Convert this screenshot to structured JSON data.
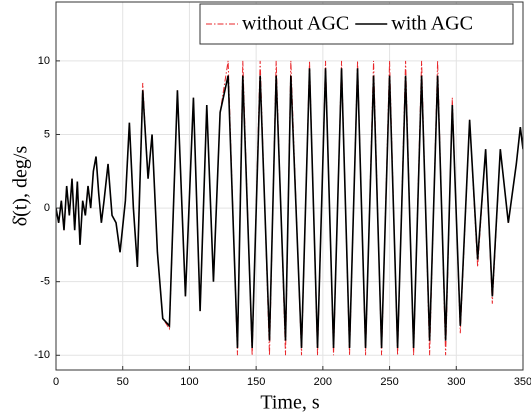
{
  "chart_data": {
    "type": "line",
    "xlabel": "Time, s",
    "ylabel": "δ̇(t), deg/s",
    "x": [
      0,
      2,
      4,
      6,
      8,
      10,
      12,
      14,
      16,
      18,
      20,
      22,
      24,
      26,
      28,
      30,
      32,
      34,
      36,
      39,
      42,
      45,
      48,
      52,
      55,
      58,
      61,
      65,
      69,
      72,
      76,
      80,
      85,
      91,
      97,
      103,
      108,
      113,
      118,
      123,
      129,
      136,
      140,
      147,
      153,
      160,
      165,
      172,
      176,
      184,
      190,
      196,
      202,
      208,
      214,
      220,
      226,
      232,
      238,
      244,
      250,
      256,
      262,
      268,
      274,
      280,
      286,
      292,
      297,
      303,
      310,
      316,
      322,
      327,
      333,
      339,
      345,
      348,
      350
    ],
    "series": [
      {
        "name": "without AGC",
        "color": "#e8262a",
        "dash": true,
        "values": [
          0,
          -1,
          0.5,
          -1.5,
          1.5,
          -0.5,
          2,
          -1.5,
          1.8,
          -2.5,
          0.5,
          -0.5,
          1.5,
          0,
          2.5,
          3.5,
          1,
          -1,
          0.5,
          3,
          -0.5,
          -1,
          -3,
          0.5,
          5.8,
          0,
          -4,
          8.5,
          2,
          5,
          -3,
          -7.5,
          -8.2,
          8,
          -6,
          7.5,
          -7,
          7,
          -5,
          6.5,
          10,
          -10,
          10,
          -10,
          10,
          -10,
          10,
          -10,
          10,
          -10,
          10,
          -10,
          10,
          -10,
          10,
          -10,
          10,
          -10,
          10,
          -10,
          10,
          -10,
          10,
          -10,
          10,
          -10,
          10,
          -10,
          7.5,
          -8.5,
          6,
          -4,
          4,
          -6.5,
          4,
          -1,
          3,
          5.5,
          4
        ]
      },
      {
        "name": "with AGC",
        "color": "#000000",
        "dash": false,
        "values": [
          0,
          -1,
          0.5,
          -1.5,
          1.5,
          -0.5,
          2,
          -1.5,
          1.8,
          -2.5,
          0.5,
          -0.5,
          1.5,
          0,
          2.5,
          3.5,
          1,
          -1,
          0.5,
          3,
          -0.5,
          -1,
          -3,
          0.5,
          5.8,
          0,
          -4,
          8,
          2,
          5,
          -3,
          -7.5,
          -8,
          8,
          -6,
          7.5,
          -7,
          7,
          -5,
          6.5,
          9,
          -9.5,
          9,
          -9.5,
          9,
          -9,
          9,
          -9,
          9,
          -9.5,
          9.5,
          -9.5,
          9.5,
          -9.5,
          9.5,
          -9.5,
          9.5,
          -9.5,
          9,
          -9.5,
          9,
          -9.5,
          9,
          -9.5,
          9,
          -9,
          9,
          -9,
          7,
          -8,
          6,
          -3.5,
          4,
          -6,
          4,
          -1,
          3,
          5.5,
          4
        ]
      }
    ],
    "xlim": [
      0,
      350
    ],
    "xticks": [
      0,
      50,
      100,
      150,
      200,
      250,
      300,
      350
    ],
    "ylim": [
      -11,
      14
    ],
    "yticks": [
      -10,
      -5,
      0,
      5,
      10
    ],
    "grid": true,
    "legend": "upper right"
  }
}
